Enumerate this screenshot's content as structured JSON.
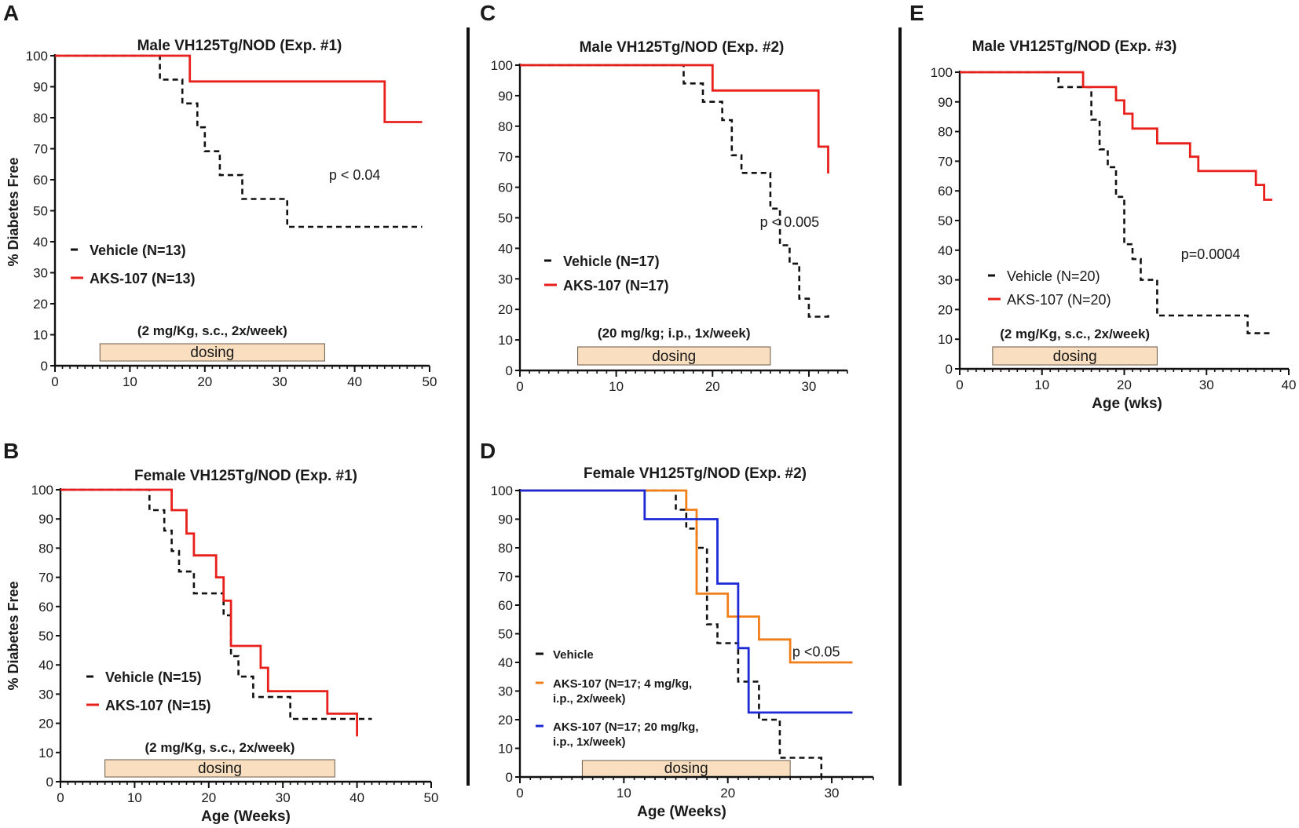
{
  "figure": {
    "panel_labels": [
      "A",
      "B",
      "C",
      "D",
      "E"
    ]
  },
  "colors": {
    "vehicle": "#111111",
    "aks_red": "#e8201c",
    "aks_orange": "#f07f1a",
    "aks_blue": "#1c29d6",
    "dosing_fill": "#f9dfbf",
    "dosing_stroke": "#6a5a48"
  },
  "chart_data": [
    {
      "panel": "A",
      "type": "line",
      "title": "Male VH125Tg/NOD (Exp. #1)",
      "xlabel": "",
      "ylabel": "% Diabetes Free",
      "xlim": [
        0,
        50
      ],
      "ylim": [
        0,
        100
      ],
      "xticks": [
        "0",
        "10",
        "20",
        "30",
        "40",
        "50"
      ],
      "yticks": [
        "0",
        "10",
        "20",
        "30",
        "40",
        "50",
        "60",
        "70",
        "80",
        "90",
        "100"
      ],
      "annotation": {
        "text": "p < 0.04",
        "x": 40,
        "y": 60
      },
      "dosing": {
        "label": "dosing",
        "regimen": "(2 mg/Kg, s.c., 2x/week)",
        "start": 6,
        "end": 36
      },
      "series": [
        {
          "name": "Vehicle (N=13)",
          "style": "dashed",
          "color": "#111111",
          "points": [
            [
              0,
              100
            ],
            [
              14,
              100
            ],
            [
              14,
              92.3
            ],
            [
              17,
              92.3
            ],
            [
              17,
              84.6
            ],
            [
              19,
              84.6
            ],
            [
              19,
              76.9
            ],
            [
              20,
              76.9
            ],
            [
              20,
              69.2
            ],
            [
              22,
              69.2
            ],
            [
              22,
              61.5
            ],
            [
              25,
              61.5
            ],
            [
              25,
              53.8
            ],
            [
              31,
              53.8
            ],
            [
              31,
              44.8
            ],
            [
              49,
              44.8
            ]
          ]
        },
        {
          "name": "AKS-107 (N=13)",
          "style": "solid",
          "color": "#e8201c",
          "points": [
            [
              0,
              100
            ],
            [
              18,
              100
            ],
            [
              18,
              91.7
            ],
            [
              44,
              91.7
            ],
            [
              44,
              78.6
            ],
            [
              49,
              78.6
            ]
          ]
        }
      ]
    },
    {
      "panel": "B",
      "type": "line",
      "title": "Female VH125Tg/NOD (Exp. #1)",
      "xlabel": "Age (Weeks)",
      "ylabel": "% Diabetes Free",
      "xlim": [
        0,
        50
      ],
      "ylim": [
        0,
        100
      ],
      "xticks": [
        "0",
        "10",
        "20",
        "30",
        "40",
        "50"
      ],
      "yticks": [
        "0",
        "10",
        "20",
        "30",
        "40",
        "50",
        "60",
        "70",
        "80",
        "90",
        "100"
      ],
      "annotation": null,
      "dosing": {
        "label": "dosing",
        "regimen": "(2 mg/Kg, s.c., 2x/week)",
        "start": 6,
        "end": 37
      },
      "series": [
        {
          "name": "Vehicle (N=15)",
          "style": "dashed",
          "color": "#111111",
          "points": [
            [
              0,
              100
            ],
            [
              12,
              100
            ],
            [
              12,
              93
            ],
            [
              14,
              93
            ],
            [
              14,
              86
            ],
            [
              15,
              86
            ],
            [
              15,
              79
            ],
            [
              16,
              79
            ],
            [
              16,
              72
            ],
            [
              18,
              72
            ],
            [
              18,
              64.5
            ],
            [
              22,
              64.5
            ],
            [
              22,
              57
            ],
            [
              23,
              57
            ],
            [
              23,
              43
            ],
            [
              24,
              43
            ],
            [
              24,
              36
            ],
            [
              26,
              36
            ],
            [
              26,
              29
            ],
            [
              31,
              29
            ],
            [
              31,
              21.5
            ],
            [
              42,
              21.5
            ]
          ]
        },
        {
          "name": "AKS-107 (N=15)",
          "style": "solid",
          "color": "#e8201c",
          "points": [
            [
              0,
              100
            ],
            [
              15,
              100
            ],
            [
              15,
              93
            ],
            [
              17,
              93
            ],
            [
              17,
              85
            ],
            [
              18,
              85
            ],
            [
              18,
              77.5
            ],
            [
              21,
              77.5
            ],
            [
              21,
              70
            ],
            [
              22,
              70
            ],
            [
              22,
              62
            ],
            [
              23,
              62
            ],
            [
              23,
              46.5
            ],
            [
              27,
              46.5
            ],
            [
              27,
              39
            ],
            [
              28,
              39
            ],
            [
              28,
              31
            ],
            [
              36,
              31
            ],
            [
              36,
              23.3
            ],
            [
              40,
              23.3
            ],
            [
              40,
              15.5
            ]
          ]
        }
      ]
    },
    {
      "panel": "C",
      "type": "line",
      "title": "Male VH125Tg/NOD (Exp. #2)",
      "xlabel": "",
      "ylabel": "",
      "xlim": [
        0,
        34
      ],
      "ylim": [
        0,
        100
      ],
      "xticks": [
        "0",
        "10",
        "20",
        "30"
      ],
      "yticks": [
        "0",
        "10",
        "20",
        "30",
        "40",
        "50",
        "60",
        "70",
        "80",
        "90",
        "100"
      ],
      "annotation": {
        "text": "p < 0.005",
        "x": 28,
        "y": 47
      },
      "dosing": {
        "label": "dosing",
        "regimen": "(20 mg/kg; i.p., 1x/week)",
        "start": 6,
        "end": 26
      },
      "series": [
        {
          "name": "Vehicle (N=17)",
          "style": "dashed",
          "color": "#111111",
          "points": [
            [
              0,
              100
            ],
            [
              17,
              100
            ],
            [
              17,
              94
            ],
            [
              19,
              94
            ],
            [
              19,
              88
            ],
            [
              21,
              88
            ],
            [
              21,
              82
            ],
            [
              22,
              82
            ],
            [
              22,
              70.5
            ],
            [
              23,
              70.5
            ],
            [
              23,
              64.7
            ],
            [
              26,
              64.7
            ],
            [
              26,
              53
            ],
            [
              27,
              53
            ],
            [
              27,
              41
            ],
            [
              28,
              41
            ],
            [
              28,
              35
            ],
            [
              29,
              35
            ],
            [
              29,
              23.5
            ],
            [
              30,
              23.5
            ],
            [
              30,
              17.6
            ],
            [
              32,
              17.6
            ],
            [
              32,
              18.5
            ]
          ]
        },
        {
          "name": "AKS-107 (N=17)",
          "style": "solid",
          "color": "#e8201c",
          "points": [
            [
              0,
              100
            ],
            [
              20,
              100
            ],
            [
              20,
              91.7
            ],
            [
              31,
              91.7
            ],
            [
              31,
              73.3
            ],
            [
              32,
              73.3
            ],
            [
              32,
              64.5
            ]
          ]
        }
      ]
    },
    {
      "panel": "D",
      "type": "line",
      "title": "Female VH125Tg/NOD (Exp. #2)",
      "xlabel": "Age (Weeks)",
      "ylabel": "",
      "xlim": [
        0,
        34
      ],
      "ylim": [
        0,
        100
      ],
      "xticks": [
        "0",
        "10",
        "20",
        "30"
      ],
      "yticks": [
        "0",
        "10",
        "20",
        "30",
        "40",
        "50",
        "60",
        "70",
        "80",
        "90",
        "100"
      ],
      "annotation": {
        "text": "p <0.05",
        "x": 28.5,
        "y": 42
      },
      "dosing": {
        "label": "dosing",
        "regimen": "",
        "start": 6,
        "end": 26
      },
      "series": [
        {
          "name": "Vehicle",
          "style": "dashed",
          "color": "#111111",
          "points": [
            [
              0,
              100
            ],
            [
              15,
              100
            ],
            [
              15,
              93.3
            ],
            [
              16,
              93.3
            ],
            [
              16,
              86.7
            ],
            [
              17,
              86.7
            ],
            [
              17,
              80
            ],
            [
              18,
              80
            ],
            [
              18,
              53.3
            ],
            [
              19,
              53.3
            ],
            [
              19,
              46.7
            ],
            [
              21,
              46.7
            ],
            [
              21,
              33.3
            ],
            [
              23,
              33.3
            ],
            [
              23,
              20
            ],
            [
              25,
              20
            ],
            [
              25,
              6.7
            ],
            [
              29,
              6.7
            ],
            [
              29,
              0
            ]
          ]
        },
        {
          "name": "AKS-107 (N=17; 4 mg/kg, i.p., 2x/week)",
          "style": "solid",
          "color": "#f07f1a",
          "points": [
            [
              0,
              100
            ],
            [
              16,
              100
            ],
            [
              16,
              93.3
            ],
            [
              17,
              93.3
            ],
            [
              17,
              64
            ],
            [
              20,
              64
            ],
            [
              20,
              56
            ],
            [
              23,
              56
            ],
            [
              23,
              48
            ],
            [
              26,
              48
            ],
            [
              26,
              40
            ],
            [
              32,
              40
            ]
          ]
        },
        {
          "name": "AKS-107 (N=17; 20 mg/kg, i.p., 1x/week)",
          "style": "solid",
          "color": "#1c29d6",
          "points": [
            [
              0,
              100
            ],
            [
              12,
              100
            ],
            [
              12,
              90
            ],
            [
              19,
              90
            ],
            [
              19,
              67.5
            ],
            [
              21,
              67.5
            ],
            [
              21,
              45
            ],
            [
              22,
              45
            ],
            [
              22,
              22.5
            ],
            [
              32,
              22.5
            ]
          ]
        }
      ]
    },
    {
      "panel": "E",
      "type": "line",
      "title": "Male VH125Tg/NOD (Exp. #3)",
      "xlabel": "Age (wks)",
      "ylabel": "",
      "xlim": [
        0,
        40
      ],
      "ylim": [
        0,
        100
      ],
      "xticks": [
        "0",
        "10",
        "20",
        "30",
        "40"
      ],
      "yticks": [
        "0",
        "10",
        "20",
        "30",
        "40",
        "50",
        "60",
        "70",
        "80",
        "90",
        "100"
      ],
      "annotation": {
        "text": "p=0.0004",
        "x": 30.5,
        "y": 37
      },
      "dosing": {
        "label": "dosing",
        "regimen": "(2 mg/Kg, s.c., 2x/week)",
        "start": 4,
        "end": 24
      },
      "series": [
        {
          "name": "Vehicle (N=20)",
          "style": "dashed",
          "color": "#111111",
          "points": [
            [
              0,
              100
            ],
            [
              12,
              100
            ],
            [
              12,
              95
            ],
            [
              16,
              95
            ],
            [
              16,
              84
            ],
            [
              17,
              84
            ],
            [
              17,
              74
            ],
            [
              18,
              74
            ],
            [
              18,
              68
            ],
            [
              19,
              68
            ],
            [
              19,
              58
            ],
            [
              20,
              58
            ],
            [
              20,
              42
            ],
            [
              21,
              42
            ],
            [
              21,
              37
            ],
            [
              22,
              37
            ],
            [
              22,
              30
            ],
            [
              24,
              30
            ],
            [
              24,
              18
            ],
            [
              35,
              18
            ],
            [
              35,
              12
            ],
            [
              38,
              12
            ]
          ]
        },
        {
          "name": "AKS-107 (N=20)",
          "style": "solid",
          "color": "#e8201c",
          "points": [
            [
              0,
              100
            ],
            [
              15,
              100
            ],
            [
              15,
              95
            ],
            [
              19,
              95
            ],
            [
              19,
              90.5
            ],
            [
              20,
              90.5
            ],
            [
              20,
              86
            ],
            [
              21,
              86
            ],
            [
              21,
              81
            ],
            [
              24,
              81
            ],
            [
              24,
              76
            ],
            [
              28,
              76
            ],
            [
              28,
              71.5
            ],
            [
              29,
              71.5
            ],
            [
              29,
              66.7
            ],
            [
              36,
              66.7
            ],
            [
              36,
              62
            ],
            [
              37,
              62
            ],
            [
              37,
              57
            ],
            [
              38,
              57
            ]
          ]
        }
      ]
    }
  ]
}
